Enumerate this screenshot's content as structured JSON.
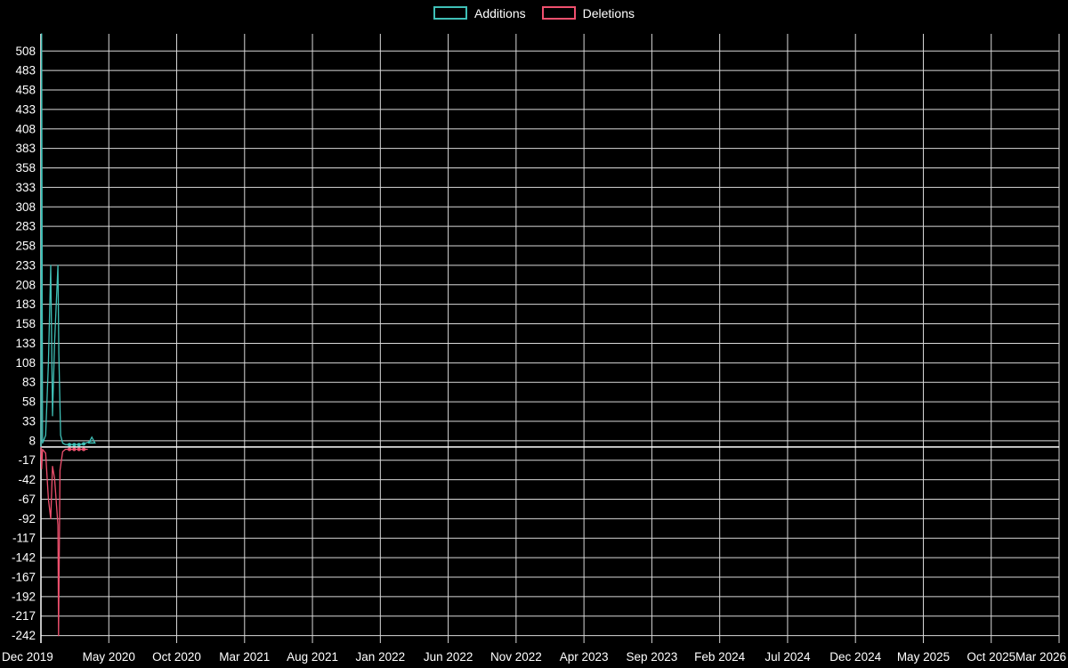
{
  "legend": {
    "items": [
      {
        "label": "Additions",
        "color": "#3fc0b7"
      },
      {
        "label": "Deletions",
        "color": "#f0506e"
      }
    ]
  },
  "chart_data": {
    "type": "line",
    "title": "",
    "xlabel": "",
    "ylabel": "",
    "background_color": "#000000",
    "grid": true,
    "grid_color": "#ffffff",
    "axis_color": "#ffffff",
    "text_color": "#ffffff",
    "legend_position": "top-center",
    "x_tick_labels": [
      "Dec 2019",
      "May 2020",
      "Oct 2020",
      "Mar 2021",
      "Aug 2021",
      "Jan 2022",
      "Jun 2022",
      "Nov 2022",
      "Apr 2023",
      "Sep 2023",
      "Feb 2024",
      "Jul 2024",
      "Dec 2024",
      "May 2025",
      "Oct 2025",
      "Mar 2026"
    ],
    "x_tick_months": [
      0,
      5,
      10,
      15,
      20,
      25,
      30,
      35,
      40,
      45,
      50,
      55,
      60,
      65,
      70,
      75
    ],
    "y_ticks": [
      508,
      483,
      458,
      433,
      408,
      383,
      358,
      333,
      308,
      283,
      258,
      233,
      208,
      183,
      158,
      133,
      108,
      83,
      58,
      33,
      8,
      -17,
      -42,
      -67,
      -92,
      -117,
      -142,
      -167,
      -192,
      -217,
      -242
    ],
    "x_range_months": [
      0,
      75
    ],
    "y_range": [
      -247,
      530
    ],
    "series": [
      {
        "name": "Additions",
        "color": "#3fc0b7",
        "points": [
          [
            0,
            0,
            0
          ],
          [
            0.05,
            530,
            0
          ],
          [
            0.12,
            5,
            0
          ],
          [
            0.35,
            15,
            0
          ],
          [
            0.55,
            108,
            0
          ],
          [
            0.72,
            233,
            0
          ],
          [
            0.85,
            40,
            0
          ],
          [
            1.0,
            133,
            0
          ],
          [
            1.25,
            233,
            0
          ],
          [
            1.32,
            120,
            0
          ],
          [
            1.45,
            15,
            0
          ],
          [
            1.6,
            5,
            0
          ],
          [
            1.8,
            3,
            0
          ],
          [
            2.1,
            3,
            1
          ],
          [
            2.45,
            3,
            1
          ],
          [
            2.8,
            3,
            1
          ],
          [
            3.15,
            4,
            1
          ],
          [
            3.75,
            8,
            2
          ]
        ]
      },
      {
        "name": "Deletions",
        "color": "#f0506e",
        "points": [
          [
            0,
            0,
            0
          ],
          [
            0.05,
            -28,
            0
          ],
          [
            0.12,
            -3,
            0
          ],
          [
            0.35,
            -8,
            0
          ],
          [
            0.55,
            -67,
            0
          ],
          [
            0.72,
            -92,
            0
          ],
          [
            0.85,
            -25,
            0
          ],
          [
            1.0,
            -40,
            0
          ],
          [
            1.25,
            -100,
            0
          ],
          [
            1.3,
            -242,
            0
          ],
          [
            1.4,
            -30,
            0
          ],
          [
            1.6,
            -6,
            0
          ],
          [
            1.8,
            -3,
            0
          ],
          [
            2.1,
            -3,
            1
          ],
          [
            2.45,
            -3,
            1
          ],
          [
            2.8,
            -3,
            1
          ],
          [
            3.15,
            -3,
            1
          ],
          [
            3.45,
            -3,
            0
          ]
        ]
      }
    ]
  }
}
